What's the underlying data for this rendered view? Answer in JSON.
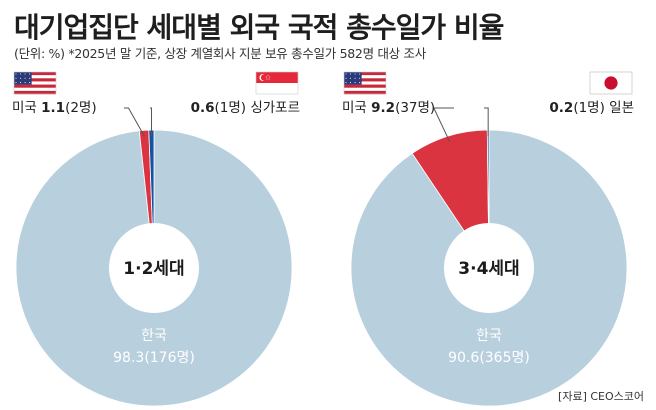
{
  "header": {
    "title": "대기업집단 세대별 외국 국적 총수일가 비율",
    "subtitle": "(단위: %) *2025년 말 기준, 상장 계열회사 지분 보유 총수일가 582명 대상 조사"
  },
  "source": "[자료] CEO스코어",
  "colors": {
    "korea": "#b8cfde",
    "usa": "#d9343f",
    "second": "#1552a3",
    "hole": "#ffffff",
    "leader": "#555555"
  },
  "chart_data": [
    {
      "type": "pie",
      "center_label": "1·2세대",
      "slices": [
        {
          "name": "한국",
          "value": 98.3,
          "people": "176명",
          "label_name": "한국",
          "label_value": "98.3(176명)",
          "color_key": "korea",
          "flag": ""
        },
        {
          "name": "미국",
          "value": 1.1,
          "people": "2명",
          "label_name": "미국",
          "label_value": "1.1(2명)",
          "color_key": "usa",
          "flag": "us-flag"
        },
        {
          "name": "싱가포르",
          "value": 0.6,
          "people": "1명",
          "label_name": "싱가포르",
          "label_value": "0.6(1명)",
          "color_key": "second",
          "flag": "sg-flag"
        }
      ]
    },
    {
      "type": "pie",
      "center_label": "3·4세대",
      "slices": [
        {
          "name": "한국",
          "value": 90.6,
          "people": "365명",
          "label_name": "한국",
          "label_value": "90.6(365명)",
          "color_key": "korea",
          "flag": ""
        },
        {
          "name": "미국",
          "value": 9.2,
          "people": "37명",
          "label_name": "미국",
          "label_value": "9.2(37명)",
          "color_key": "usa",
          "flag": "us-flag"
        },
        {
          "name": "일본",
          "value": 0.2,
          "people": "1명",
          "label_name": "일본",
          "label_value": "0.2(1명)",
          "color_key": "second",
          "flag": "jp-flag"
        }
      ]
    }
  ]
}
